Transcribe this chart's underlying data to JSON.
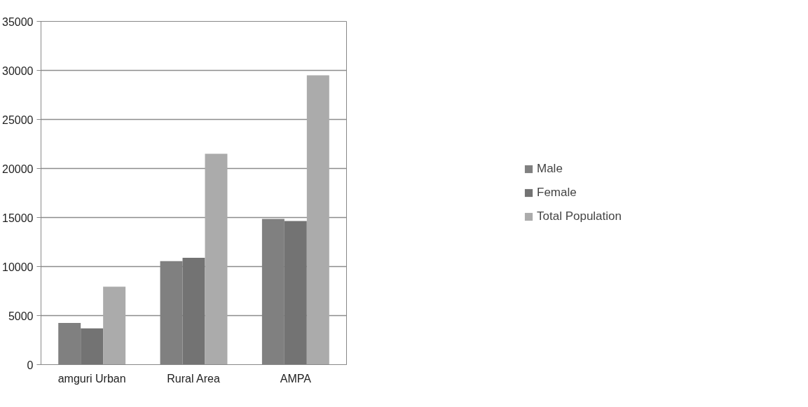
{
  "chart_data": {
    "type": "bar",
    "categories": [
      "amguri Urban",
      "Rural Area",
      "AMPA"
    ],
    "series": [
      {
        "name": "Male",
        "color": "#808080",
        "values": [
          4250,
          10550,
          14850
        ]
      },
      {
        "name": "Female",
        "color": "#737373",
        "values": [
          3700,
          10900,
          14650
        ]
      },
      {
        "name": "Total Population",
        "color": "#ababab",
        "values": [
          7950,
          21500,
          29500
        ]
      }
    ],
    "ylim": [
      0,
      35000
    ],
    "yticks": [
      0,
      5000,
      10000,
      15000,
      20000,
      25000,
      30000,
      35000
    ],
    "grid": "y",
    "legend": "right"
  }
}
